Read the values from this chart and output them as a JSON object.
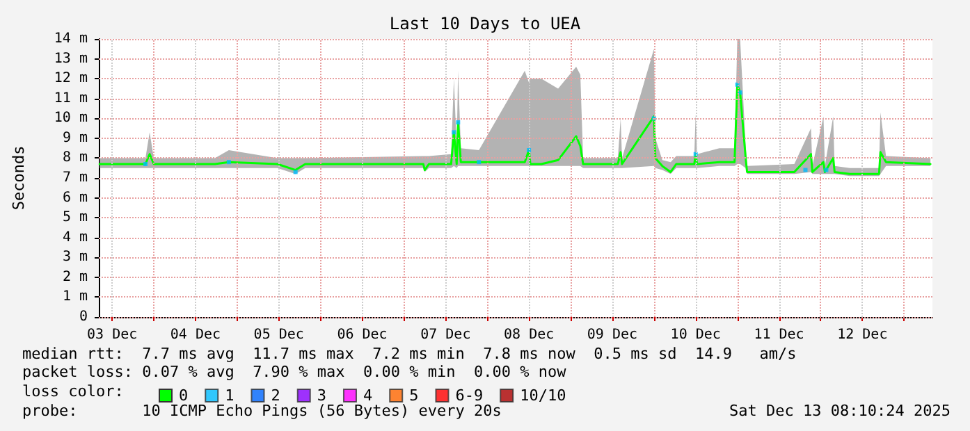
{
  "chart_data": {
    "type": "line",
    "title": "Last 10 Days to UEA",
    "ylabel": "Seconds",
    "xlim": [
      "2025-12-03T08:10",
      "2025-12-13T08:10"
    ],
    "xticks": [
      {
        "value": "2025-12-03T12:00",
        "label": "03 Dec"
      },
      {
        "value": "2025-12-04T00:00",
        "label": null
      },
      {
        "value": "2025-12-04T12:00",
        "label": "04 Dec"
      },
      {
        "value": "2025-12-05T00:00",
        "label": null
      },
      {
        "value": "2025-12-05T12:00",
        "label": "05 Dec"
      },
      {
        "value": "2025-12-06T00:00",
        "label": null
      },
      {
        "value": "2025-12-06T12:00",
        "label": "06 Dec"
      },
      {
        "value": "2025-12-07T00:00",
        "label": null
      },
      {
        "value": "2025-12-07T12:00",
        "label": "07 Dec"
      },
      {
        "value": "2025-12-08T00:00",
        "label": null
      },
      {
        "value": "2025-12-08T12:00",
        "label": "08 Dec"
      },
      {
        "value": "2025-12-09T00:00",
        "label": null
      },
      {
        "value": "2025-12-09T12:00",
        "label": "09 Dec"
      },
      {
        "value": "2025-12-10T00:00",
        "label": null
      },
      {
        "value": "2025-12-10T12:00",
        "label": "10 Dec"
      },
      {
        "value": "2025-12-11T00:00",
        "label": null
      },
      {
        "value": "2025-12-11T12:00",
        "label": "11 Dec"
      },
      {
        "value": "2025-12-12T00:00",
        "label": null
      },
      {
        "value": "2025-12-12T12:00",
        "label": "12 Dec"
      },
      {
        "value": "2025-12-13T00:00",
        "label": null
      }
    ],
    "ylim": [
      0,
      14
    ],
    "yticks": [
      0,
      {
        "value": 1,
        "label": "1 m"
      },
      {
        "value": 2,
        "label": "2 m"
      },
      {
        "value": 3,
        "label": "3 m"
      },
      {
        "value": 4,
        "label": "4 m"
      },
      {
        "value": 5,
        "label": "5 m"
      },
      {
        "value": 6,
        "label": "6 m"
      },
      {
        "value": 7,
        "label": "7 m"
      },
      {
        "value": 8,
        "label": "8 m"
      },
      {
        "value": 9,
        "label": "9 m"
      },
      {
        "value": 10,
        "label": "10 m"
      },
      {
        "value": 11,
        "label": "11 m"
      },
      {
        "value": 12,
        "label": "12 m"
      },
      {
        "value": 13,
        "label": "13 m"
      },
      {
        "value": 14,
        "label": "14 m"
      }
    ],
    "grid": true,
    "legend": "bottom",
    "legend_title": "loss color:",
    "marker": "none",
    "line_style": "solid",
    "series": [
      {
        "name": "0",
        "color": "#00ff00",
        "x": [
          "2025-12-03T08:24",
          "2025-12-03T21:36",
          "2025-12-03T22:48",
          "2025-12-04T00:00",
          "2025-12-04T17:36",
          "2025-12-04T21:36",
          "2025-12-05T11:36",
          "2025-12-05T16:48",
          "2025-12-05T19:36",
          "2025-12-07T05:36",
          "2025-12-07T06:00",
          "2025-12-07T07:12",
          "2025-12-07T13:36",
          "2025-12-07T14:24",
          "2025-12-07T15:12",
          "2025-12-07T15:36",
          "2025-12-07T16:24",
          "2025-12-07T21:36",
          "2025-12-08T10:48",
          "2025-12-08T12:00",
          "2025-12-08T12:24",
          "2025-12-08T15:36",
          "2025-12-08T20:24",
          "2025-12-09T01:36",
          "2025-12-09T02:48",
          "2025-12-09T03:36",
          "2025-12-09T05:36",
          "2025-12-09T13:36",
          "2025-12-09T14:24",
          "2025-12-09T14:48",
          "2025-12-10T00:00",
          "2025-12-10T00:24",
          "2025-12-10T02:24",
          "2025-12-10T04:48",
          "2025-12-10T06:24",
          "2025-12-10T11:36",
          "2025-12-10T12:00",
          "2025-12-10T12:24",
          "2025-12-10T18:48",
          "2025-12-10T23:12",
          "2025-12-11T00:00",
          "2025-12-11T00:48",
          "2025-12-11T02:24",
          "2025-12-11T02:48",
          "2025-12-11T16:24",
          "2025-12-11T21:12",
          "2025-12-11T21:36",
          "2025-12-12T00:48",
          "2025-12-12T01:12",
          "2025-12-12T03:36",
          "2025-12-12T04:00",
          "2025-12-12T08:24",
          "2025-12-12T16:48",
          "2025-12-12T17:12",
          "2025-12-12T18:48",
          "2025-12-13T07:36"
        ],
        "values": [
          7.7,
          7.7,
          8.2,
          7.7,
          7.7,
          7.8,
          7.7,
          7.4,
          7.7,
          7.7,
          7.4,
          7.7,
          7.7,
          9.3,
          7.7,
          9.8,
          7.8,
          7.8,
          7.8,
          8.4,
          7.7,
          7.7,
          7.9,
          9.1,
          8.6,
          7.7,
          7.7,
          7.7,
          8.3,
          7.7,
          10.1,
          8.0,
          7.6,
          7.3,
          7.7,
          7.7,
          8.2,
          7.7,
          7.8,
          7.8,
          11.7,
          11.3,
          8.0,
          7.3,
          7.3,
          8.2,
          7.3,
          7.8,
          7.3,
          8.0,
          7.3,
          7.2,
          7.2,
          8.3,
          7.8,
          7.7
        ],
        "lower": [
          7.5,
          7.5,
          7.5,
          7.5,
          7.5,
          7.5,
          7.5,
          7.2,
          7.5,
          7.5,
          7.3,
          7.5,
          7.5,
          7.6,
          7.5,
          7.6,
          7.6,
          7.6,
          7.6,
          7.6,
          7.6,
          7.6,
          7.6,
          7.6,
          7.6,
          7.5,
          7.5,
          7.5,
          7.5,
          7.5,
          7.6,
          7.5,
          7.4,
          7.2,
          7.5,
          7.5,
          7.5,
          7.5,
          7.6,
          7.6,
          7.7,
          7.7,
          7.5,
          7.2,
          7.2,
          7.3,
          7.2,
          7.2,
          7.2,
          7.2,
          7.2,
          7.1,
          7.1,
          7.2,
          7.6,
          7.6
        ],
        "upper": [
          8.0,
          8.0,
          9.3,
          8.0,
          8.0,
          8.4,
          8.0,
          8.0,
          8.0,
          8.1,
          8.1,
          8.1,
          8.2,
          12.0,
          8.5,
          12.4,
          8.5,
          8.4,
          12.4,
          11.8,
          12.0,
          12.0,
          11.5,
          12.6,
          12.2,
          8.0,
          8.0,
          8.0,
          10.0,
          8.0,
          13.5,
          9.0,
          7.9,
          7.8,
          8.1,
          8.1,
          10.2,
          8.2,
          8.5,
          8.5,
          14.0,
          14.0,
          8.6,
          7.6,
          7.7,
          9.5,
          7.6,
          10.1,
          7.6,
          10.1,
          7.6,
          7.5,
          7.5,
          10.3,
          8.1,
          8.0
        ]
      },
      {
        "name": "1",
        "color": "#00bbff",
        "type": "scatter",
        "marker": "square",
        "x": [
          "2025-12-03T21:36",
          "2025-12-04T21:36",
          "2025-12-05T16:48",
          "2025-12-07T14:24",
          "2025-12-07T15:36",
          "2025-12-07T21:36",
          "2025-12-08T12:00",
          "2025-12-10T00:00",
          "2025-12-10T12:00",
          "2025-12-11T00:00",
          "2025-12-11T00:48",
          "2025-12-11T19:36",
          "2025-12-12T01:36"
        ],
        "values": [
          7.7,
          7.8,
          7.3,
          9.3,
          9.8,
          7.8,
          8.4,
          10.0,
          8.2,
          11.7,
          11.3,
          7.4,
          7.4
        ]
      },
      {
        "name": "2",
        "color": "#0066ff",
        "type": "scatter",
        "marker": "square"
      },
      {
        "name": "3",
        "color": "#8800ff",
        "type": "scatter",
        "marker": "square"
      },
      {
        "name": "4",
        "color": "#ff00ff",
        "type": "scatter",
        "marker": "square"
      },
      {
        "name": "5",
        "color": "#ff6600",
        "type": "scatter",
        "marker": "square"
      },
      {
        "name": "6-9",
        "color": "#ff0000",
        "type": "scatter",
        "marker": "square"
      },
      {
        "name": "10/10",
        "color": "#aa0000",
        "type": "scatter",
        "marker": "square"
      }
    ],
    "annotations": [
      "median rtt:  7.7 ms avg  11.7 ms max  7.2 ms min  7.8 ms now  0.5 ms sd  14.9   am/s",
      "packet loss: 0.07 % avg  7.90 % max  0.00 % min  0.00 % now",
      "probe:       10 ICMP Echo Pings (56 Bytes) every 20s",
      "Sat Dec 13 08:10:24 2025"
    ]
  }
}
